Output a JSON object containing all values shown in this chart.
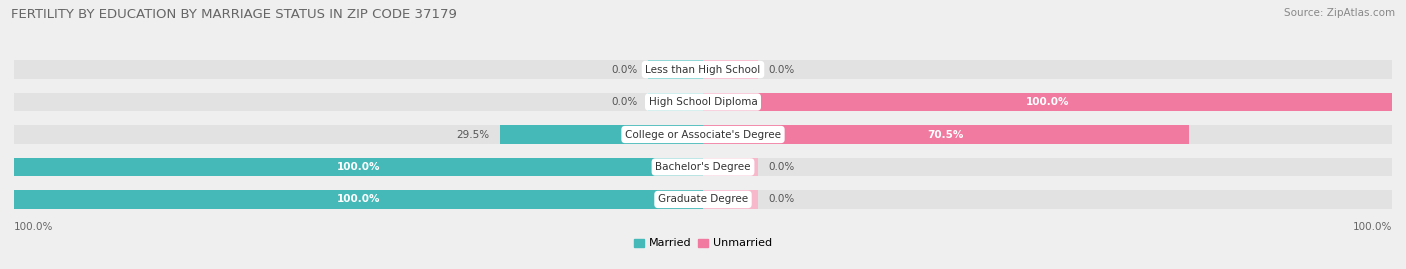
{
  "title": "FERTILITY BY EDUCATION BY MARRIAGE STATUS IN ZIP CODE 37179",
  "source": "Source: ZipAtlas.com",
  "categories": [
    "Less than High School",
    "High School Diploma",
    "College or Associate's Degree",
    "Bachelor's Degree",
    "Graduate Degree"
  ],
  "married": [
    0.0,
    0.0,
    29.5,
    100.0,
    100.0
  ],
  "unmarried": [
    0.0,
    100.0,
    70.5,
    0.0,
    0.0
  ],
  "married_color": "#45b8b8",
  "unmarried_color": "#f07aa0",
  "married_color_light": "#85d4d4",
  "unmarried_color_light": "#f8b8cc",
  "background_color": "#efefef",
  "bar_bg_color": "#e2e2e2",
  "title_fontsize": 9.5,
  "source_fontsize": 7.5,
  "label_fontsize": 7.5,
  "pct_fontsize": 7.5,
  "tick_fontsize": 7.5,
  "legend_fontsize": 8,
  "bar_height": 0.58,
  "min_bar_pct": 8.0
}
